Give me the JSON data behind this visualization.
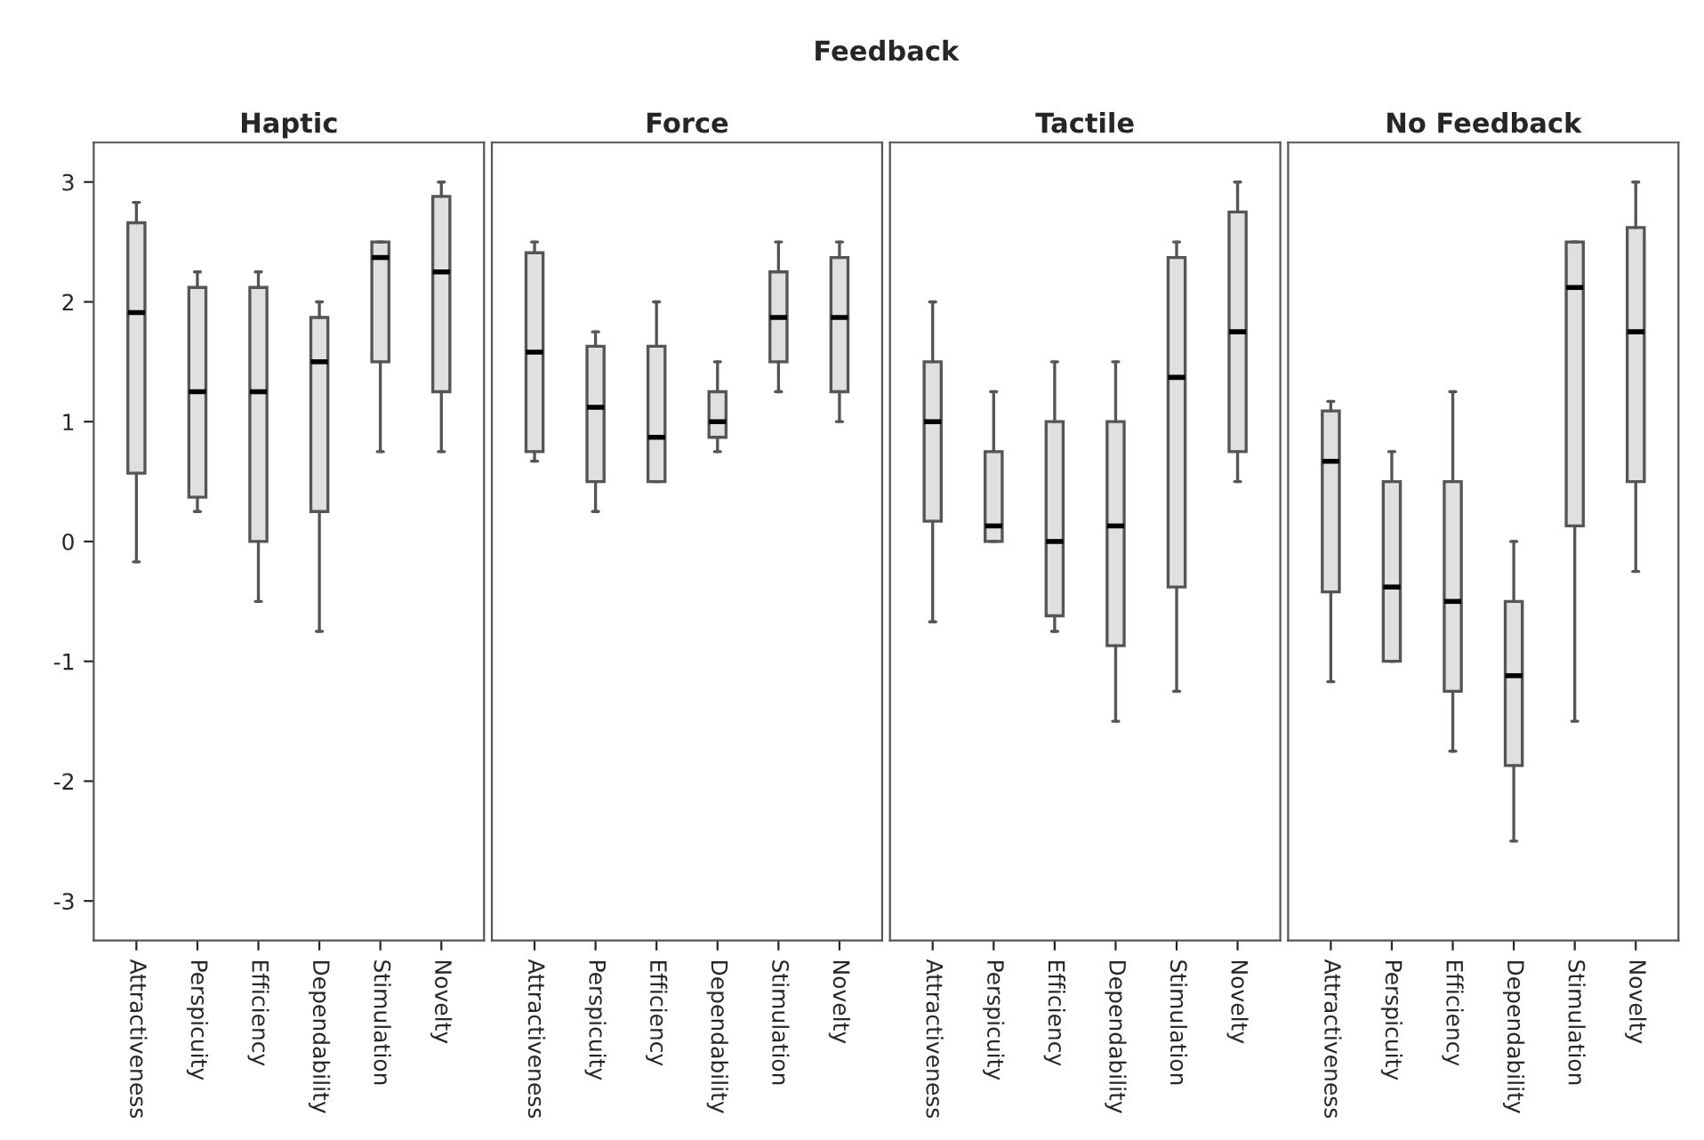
{
  "chart_data": [
    {
      "type": "box",
      "title": "Haptic",
      "annotations": [
        "Feedback"
      ],
      "categories": [
        "Attractiveness",
        "Perspicuity",
        "Efficiency",
        "Dependability",
        "Stimulation",
        "Novelty"
      ],
      "color": "#e0e0e0",
      "ylim": [
        -3.33,
        3.33
      ],
      "yticks": [
        -3,
        -2,
        -1,
        0,
        1,
        2,
        3
      ],
      "grid": false,
      "boxes": [
        {
          "low": -0.17,
          "q1": 0.57,
          "median": 1.91,
          "q3": 2.66,
          "high": 2.83
        },
        {
          "low": 0.25,
          "q1": 0.37,
          "median": 1.25,
          "q3": 2.12,
          "high": 2.25
        },
        {
          "low": -0.5,
          "q1": 0,
          "median": 1.25,
          "q3": 2.12,
          "high": 2.25
        },
        {
          "low": -0.75,
          "q1": 0.25,
          "median": 1.5,
          "q3": 1.87,
          "high": 2.0
        },
        {
          "low": 0.75,
          "q1": 1.5,
          "median": 2.37,
          "q3": 2.5,
          "high": 2.5
        },
        {
          "low": 0.75,
          "q1": 1.25,
          "median": 2.25,
          "q3": 2.88,
          "high": 3.0
        }
      ]
    },
    {
      "type": "box",
      "title": "Force",
      "categories": [
        "Attractiveness",
        "Perspicuity",
        "Efficiency",
        "Dependability",
        "Stimulation",
        "Novelty"
      ],
      "color": "#e0e0e0",
      "ylim": [
        -3.33,
        3.33
      ],
      "yticks": [
        -3,
        -2,
        -1,
        0,
        1,
        2,
        3
      ],
      "grid": false,
      "tick_labels": "x",
      "boxes": [
        {
          "low": 0.67,
          "q1": 0.75,
          "median": 1.58,
          "q3": 2.41,
          "high": 2.5
        },
        {
          "low": 0.25,
          "q1": 0.5,
          "median": 1.12,
          "q3": 1.63,
          "high": 1.75
        },
        {
          "low": 0.5,
          "q1": 0.5,
          "median": 0.87,
          "q3": 1.63,
          "high": 2.0
        },
        {
          "low": 0.75,
          "q1": 0.87,
          "median": 1.0,
          "q3": 1.25,
          "high": 1.5
        },
        {
          "low": 1.25,
          "q1": 1.5,
          "median": 1.87,
          "q3": 2.25,
          "high": 2.5
        },
        {
          "low": 1.0,
          "q1": 1.25,
          "median": 1.87,
          "q3": 2.37,
          "high": 2.5
        }
      ]
    },
    {
      "type": "box",
      "title": "Tactile",
      "categories": [
        "Attractiveness",
        "Perspicuity",
        "Efficiency",
        "Dependability",
        "Stimulation",
        "Novelty"
      ],
      "color": "#e0e0e0",
      "ylim": [
        -3.33,
        3.33
      ],
      "yticks": [
        -3,
        -2,
        -1,
        0,
        1,
        2,
        3
      ],
      "grid": false,
      "tick_labels": "x",
      "boxes": [
        {
          "low": -0.67,
          "q1": 0.17,
          "median": 1.0,
          "q3": 1.5,
          "high": 2.0
        },
        {
          "low": 0,
          "q1": 0,
          "median": 0.13,
          "q3": 0.75,
          "high": 1.25
        },
        {
          "low": -0.75,
          "q1": -0.62,
          "median": 0,
          "q3": 1.0,
          "high": 1.5
        },
        {
          "low": -1.5,
          "q1": -0.87,
          "median": 0.13,
          "q3": 1.0,
          "high": 1.5
        },
        {
          "low": -1.25,
          "q1": -0.38,
          "median": 1.37,
          "q3": 2.37,
          "high": 2.5
        },
        {
          "low": 0.5,
          "q1": 0.75,
          "median": 1.75,
          "q3": 2.75,
          "high": 3.0
        }
      ]
    },
    {
      "type": "box",
      "title": "No Feedback",
      "categories": [
        "Attractiveness",
        "Perspicuity",
        "Efficiency",
        "Dependability",
        "Stimulation",
        "Novelty"
      ],
      "color": "#e0e0e0",
      "ylim": [
        -3.33,
        3.33
      ],
      "yticks": [
        -3,
        -2,
        -1,
        0,
        1,
        2,
        3
      ],
      "grid": false,
      "tick_labels": "x",
      "boxes": [
        {
          "low": -1.17,
          "q1": -0.42,
          "median": 0.67,
          "q3": 1.09,
          "high": 1.17
        },
        {
          "low": -1.0,
          "q1": -1.0,
          "median": -0.38,
          "q3": 0.5,
          "high": 0.75
        },
        {
          "low": -1.75,
          "q1": -1.25,
          "median": -0.5,
          "q3": 0.5,
          "high": 1.25
        },
        {
          "low": -2.5,
          "q1": -1.87,
          "median": -1.12,
          "q3": -0.5,
          "high": 0.0
        },
        {
          "low": -1.5,
          "q1": 0.13,
          "median": 2.12,
          "q3": 2.5,
          "high": 2.5
        },
        {
          "low": -0.25,
          "q1": 0.5,
          "median": 1.75,
          "q3": 2.62,
          "high": 3.0
        }
      ]
    }
  ]
}
